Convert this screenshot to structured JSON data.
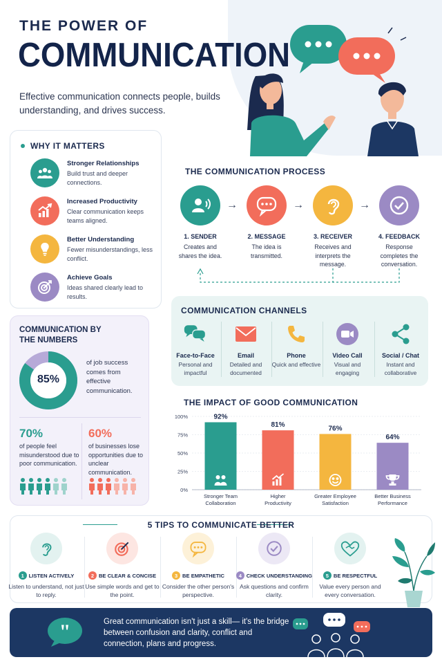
{
  "header": {
    "title_line1": "THE POWER OF",
    "title_line2": "COMMUNICATION",
    "subtitle": "Effective communication connects people, builds understanding, and drives success."
  },
  "why_it_matters": {
    "title": "WHY IT MATTERS",
    "items": [
      {
        "title": "Stronger Relationships",
        "desc": "Build trust and deeper connections.",
        "icon": "team-icon",
        "color": "#2a9d8f"
      },
      {
        "title": "Increased Productivity",
        "desc": "Clear communication keeps teams aligned.",
        "icon": "growth-chart-icon",
        "color": "#f26d5b"
      },
      {
        "title": "Better Understanding",
        "desc": "Fewer misunderstandings, less conflict.",
        "icon": "lightbulb-icon",
        "color": "#f4b63f"
      },
      {
        "title": "Achieve Goals",
        "desc": "Ideas shared clearly lead to results.",
        "icon": "target-icon",
        "color": "#9b8ac4"
      }
    ]
  },
  "numbers": {
    "title": "COMMUNICATION BY THE NUMBERS",
    "donut_value": "85%",
    "donut_fraction": 0.85,
    "donut_desc": "of job success comes from effective communication.",
    "stat1_value": "70%",
    "stat1_desc": "of people feel misunderstood due to poor communication.",
    "stat2_value": "60%",
    "stat2_desc": "of businesses lose opportunities due to unclear communication."
  },
  "process": {
    "title": "THE COMMUNICATION PROCESS",
    "steps": [
      {
        "label": "1. SENDER",
        "desc": "Creates and shares the idea.",
        "icon": "sender-icon",
        "color": "#2a9d8f"
      },
      {
        "label": "2. MESSAGE",
        "desc": "The idea is transmitted.",
        "icon": "chat-bubble-icon",
        "color": "#f26d5b"
      },
      {
        "label": "3. RECEIVER",
        "desc": "Receives and interprets the message.",
        "icon": "ear-icon",
        "color": "#f4b63f"
      },
      {
        "label": "4. FEEDBACK",
        "desc": "Response completes the conversation.",
        "icon": "check-icon",
        "color": "#9b8ac4"
      }
    ]
  },
  "channels": {
    "title": "COMMUNICATION CHANNELS",
    "items": [
      {
        "name": "Face-to-Face",
        "desc": "Personal and impactful",
        "icon": "face-to-face-icon"
      },
      {
        "name": "Email",
        "desc": "Detailed and documented",
        "icon": "email-icon"
      },
      {
        "name": "Phone",
        "desc": "Quick and effective",
        "icon": "phone-icon"
      },
      {
        "name": "Video Call",
        "desc": "Visual and engaging",
        "icon": "video-call-icon"
      },
      {
        "name": "Social / Chat",
        "desc": "Instant and collaborative",
        "icon": "share-icon"
      }
    ]
  },
  "chart_data": {
    "type": "bar",
    "title": "THE IMPACT OF GOOD COMMUNICATION",
    "categories": [
      "Stronger Team Collaboration",
      "Higher Productivity",
      "Greater Employee Satisfaction",
      "Better Business Performance"
    ],
    "values": [
      92,
      81,
      76,
      64
    ],
    "value_labels": [
      "92%",
      "81%",
      "76%",
      "64%"
    ],
    "y_ticks": [
      "0%",
      "25%",
      "50%",
      "75%",
      "100%"
    ],
    "ylim": [
      0,
      100
    ],
    "colors": [
      "#2a9d8f",
      "#f26d5b",
      "#f4b63f",
      "#9b8ac4"
    ],
    "grid": true
  },
  "tips": {
    "title": "5 TIPS TO COMMUNICATE BETTER",
    "items": [
      {
        "num": "1",
        "title": "LISTEN ACTIVELY",
        "desc": "Listen to understand, not just to reply.",
        "icon": "ear-icon",
        "color": "#2a9d8f"
      },
      {
        "num": "2",
        "title": "BE CLEAR & CONCISE",
        "desc": "Use simple words and get to the point.",
        "icon": "target-icon",
        "color": "#f26d5b"
      },
      {
        "num": "3",
        "title": "BE EMPATHETIC",
        "desc": "Consider the other person's perspective.",
        "icon": "chat-bubble-icon",
        "color": "#f4b63f"
      },
      {
        "num": "4",
        "title": "CHECK UNDERSTANDING",
        "desc": "Ask questions and confirm clarity.",
        "icon": "check-icon",
        "color": "#9b8ac4"
      },
      {
        "num": "5",
        "title": "BE RESPECTFUL",
        "desc": "Value every person and every conversation.",
        "icon": "handshake-icon",
        "color": "#2a9d8f"
      }
    ]
  },
  "banner": {
    "quote": "Great communication isn't just a skill— it's the bridge between confusion and clarity, conflict and connection, plans and progress."
  }
}
